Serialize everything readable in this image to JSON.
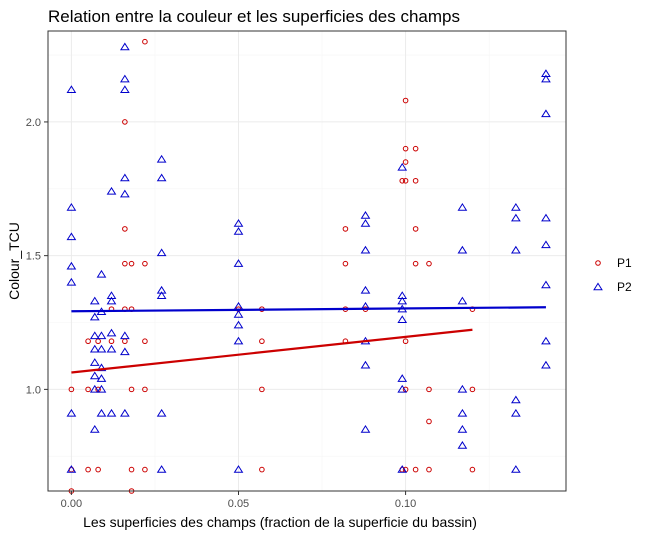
{
  "chart_data": {
    "type": "scatter",
    "title": "Relation entre la couleur et les superficies des champs",
    "xlabel": "Les superficies des champs (fraction de la superficie du bassin)",
    "ylabel": "Colour_TCU",
    "xlim": [
      -0.007,
      0.148
    ],
    "ylim": [
      0.62,
      2.34
    ],
    "x_ticks": [
      0.0,
      0.05,
      0.1
    ],
    "x_tick_labels": [
      "0.00",
      "0.05",
      "0.10"
    ],
    "y_ticks": [
      1.0,
      1.5,
      2.0
    ],
    "y_tick_labels": [
      "1.0",
      "1.5",
      "2.0"
    ],
    "grid": true,
    "legend_position": "right",
    "series": [
      {
        "name": "P1",
        "color": "#cc0000",
        "marker": "circle",
        "points": [
          [
            0.0,
            0.7
          ],
          [
            0.0,
            1.0
          ],
          [
            0.0,
            0.62
          ],
          [
            0.005,
            0.7
          ],
          [
            0.005,
            1.0
          ],
          [
            0.005,
            1.18
          ],
          [
            0.008,
            0.7
          ],
          [
            0.008,
            1.0
          ],
          [
            0.008,
            1.18
          ],
          [
            0.012,
            1.18
          ],
          [
            0.012,
            1.3
          ],
          [
            0.016,
            2.0
          ],
          [
            0.016,
            1.6
          ],
          [
            0.016,
            1.47
          ],
          [
            0.016,
            1.3
          ],
          [
            0.016,
            1.18
          ],
          [
            0.018,
            1.47
          ],
          [
            0.018,
            1.3
          ],
          [
            0.018,
            0.7
          ],
          [
            0.018,
            1.0
          ],
          [
            0.018,
            0.62
          ],
          [
            0.022,
            2.3
          ],
          [
            0.022,
            1.47
          ],
          [
            0.022,
            1.18
          ],
          [
            0.022,
            0.7
          ],
          [
            0.022,
            1.0
          ],
          [
            0.05,
            1.3
          ],
          [
            0.057,
            1.3
          ],
          [
            0.057,
            1.18
          ],
          [
            0.057,
            1.0
          ],
          [
            0.057,
            0.7
          ],
          [
            0.082,
            1.6
          ],
          [
            0.082,
            1.47
          ],
          [
            0.082,
            1.3
          ],
          [
            0.082,
            1.18
          ],
          [
            0.088,
            1.3
          ],
          [
            0.099,
            1.78
          ],
          [
            0.099,
            0.7
          ],
          [
            0.1,
            2.08
          ],
          [
            0.1,
            1.9
          ],
          [
            0.1,
            1.85
          ],
          [
            0.1,
            1.78
          ],
          [
            0.1,
            1.18
          ],
          [
            0.1,
            1.0
          ],
          [
            0.1,
            0.7
          ],
          [
            0.103,
            1.9
          ],
          [
            0.103,
            1.78
          ],
          [
            0.103,
            1.6
          ],
          [
            0.103,
            1.47
          ],
          [
            0.103,
            0.7
          ],
          [
            0.107,
            1.47
          ],
          [
            0.107,
            1.0
          ],
          [
            0.107,
            0.88
          ],
          [
            0.107,
            0.7
          ],
          [
            0.12,
            1.3
          ],
          [
            0.12,
            1.0
          ],
          [
            0.12,
            0.7
          ]
        ],
        "trend": {
          "x": [
            0.0,
            0.12
          ],
          "y": [
            1.063,
            1.223
          ]
        }
      },
      {
        "name": "P2",
        "color": "#0000cc",
        "marker": "triangle",
        "points": [
          [
            0.0,
            2.12
          ],
          [
            0.0,
            1.68
          ],
          [
            0.0,
            1.57
          ],
          [
            0.0,
            1.46
          ],
          [
            0.0,
            1.4
          ],
          [
            0.0,
            0.91
          ],
          [
            0.0,
            0.7
          ],
          [
            0.007,
            1.33
          ],
          [
            0.007,
            1.27
          ],
          [
            0.007,
            1.2
          ],
          [
            0.007,
            1.15
          ],
          [
            0.007,
            1.1
          ],
          [
            0.007,
            1.05
          ],
          [
            0.007,
            1.0
          ],
          [
            0.007,
            0.85
          ],
          [
            0.009,
            1.43
          ],
          [
            0.009,
            1.29
          ],
          [
            0.009,
            1.2
          ],
          [
            0.009,
            1.15
          ],
          [
            0.009,
            1.08
          ],
          [
            0.009,
            1.04
          ],
          [
            0.009,
            1.0
          ],
          [
            0.009,
            0.91
          ],
          [
            0.012,
            1.74
          ],
          [
            0.012,
            1.35
          ],
          [
            0.012,
            1.33
          ],
          [
            0.012,
            1.21
          ],
          [
            0.012,
            1.15
          ],
          [
            0.012,
            0.91
          ],
          [
            0.016,
            2.28
          ],
          [
            0.016,
            2.16
          ],
          [
            0.016,
            2.12
          ],
          [
            0.016,
            1.79
          ],
          [
            0.016,
            1.73
          ],
          [
            0.016,
            1.2
          ],
          [
            0.016,
            1.14
          ],
          [
            0.016,
            0.91
          ],
          [
            0.027,
            1.86
          ],
          [
            0.027,
            1.79
          ],
          [
            0.027,
            1.51
          ],
          [
            0.027,
            1.37
          ],
          [
            0.027,
            1.35
          ],
          [
            0.027,
            0.91
          ],
          [
            0.027,
            0.7
          ],
          [
            0.05,
            1.62
          ],
          [
            0.05,
            1.59
          ],
          [
            0.05,
            1.47
          ],
          [
            0.05,
            1.31
          ],
          [
            0.05,
            1.28
          ],
          [
            0.05,
            1.24
          ],
          [
            0.05,
            1.18
          ],
          [
            0.05,
            0.7
          ],
          [
            0.088,
            1.65
          ],
          [
            0.088,
            1.62
          ],
          [
            0.088,
            1.52
          ],
          [
            0.088,
            1.37
          ],
          [
            0.088,
            1.31
          ],
          [
            0.088,
            1.18
          ],
          [
            0.088,
            1.09
          ],
          [
            0.088,
            0.85
          ],
          [
            0.099,
            1.83
          ],
          [
            0.099,
            1.35
          ],
          [
            0.099,
            1.33
          ],
          [
            0.099,
            1.3
          ],
          [
            0.099,
            1.26
          ],
          [
            0.099,
            1.04
          ],
          [
            0.099,
            1.0
          ],
          [
            0.099,
            0.7
          ],
          [
            0.117,
            1.68
          ],
          [
            0.117,
            1.52
          ],
          [
            0.117,
            1.33
          ],
          [
            0.117,
            1.0
          ],
          [
            0.117,
            0.91
          ],
          [
            0.117,
            0.85
          ],
          [
            0.117,
            0.79
          ],
          [
            0.133,
            1.68
          ],
          [
            0.133,
            1.64
          ],
          [
            0.133,
            1.52
          ],
          [
            0.133,
            0.96
          ],
          [
            0.133,
            0.91
          ],
          [
            0.133,
            0.7
          ],
          [
            0.142,
            2.18
          ],
          [
            0.142,
            2.16
          ],
          [
            0.142,
            2.03
          ],
          [
            0.142,
            1.64
          ],
          [
            0.142,
            1.54
          ],
          [
            0.142,
            1.39
          ],
          [
            0.142,
            1.18
          ],
          [
            0.142,
            1.09
          ]
        ],
        "trend": {
          "x": [
            0.0,
            0.142
          ],
          "y": [
            1.292,
            1.307
          ]
        }
      }
    ]
  }
}
